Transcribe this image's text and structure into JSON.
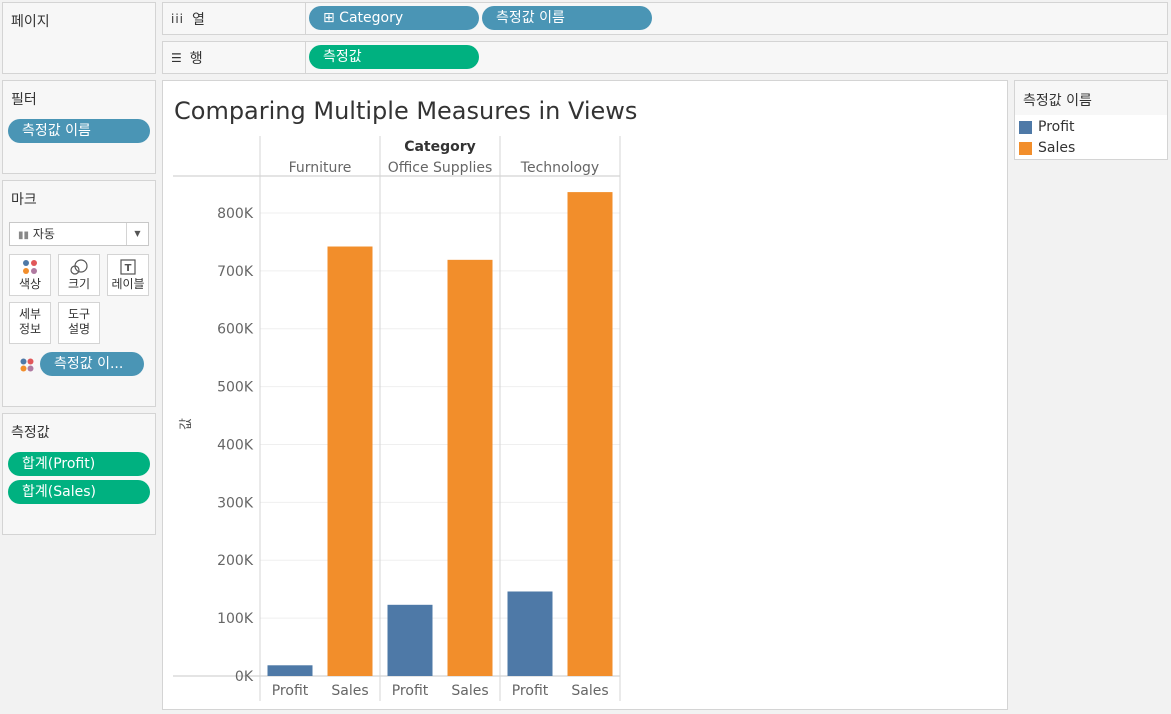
{
  "pages_panel": {
    "title": "페이지"
  },
  "columns_shelf": {
    "label": "열",
    "pills": [
      "⊞ Category",
      "측정값 이름"
    ]
  },
  "rows_shelf": {
    "label": "행",
    "pills": [
      "측정값"
    ]
  },
  "filters_panel": {
    "title": "필터",
    "pills": [
      "측정값 이름"
    ]
  },
  "marks_panel": {
    "title": "마크",
    "mark_type": "자동",
    "buttons": {
      "color": "색상",
      "size": "크기",
      "label": "레이블",
      "detail": "세부\n정보",
      "tooltip": "도구\n설명"
    },
    "color_pill": "측정값 이..."
  },
  "measures_panel": {
    "title": "측정값",
    "pills": [
      "합계(Profit)",
      "합계(Sales)"
    ]
  },
  "legend": {
    "title": "측정값 이름",
    "items": [
      {
        "label": "Profit",
        "color": "#4e79a7"
      },
      {
        "label": "Sales",
        "color": "#f28e2b"
      }
    ]
  },
  "chart_data": {
    "type": "bar",
    "title": "Comparing Multiple Measures in Views",
    "header": "Category",
    "ylabel": "값",
    "ylim": [
      0,
      850000
    ],
    "yticks": [
      0,
      100000,
      200000,
      300000,
      400000,
      500000,
      600000,
      700000,
      800000
    ],
    "ytick_labels": [
      "0K",
      "100K",
      "200K",
      "300K",
      "400K",
      "500K",
      "600K",
      "700K",
      "800K"
    ],
    "categories": [
      "Furniture",
      "Office Supplies",
      "Technology"
    ],
    "measures": [
      "Profit",
      "Sales"
    ],
    "colors": {
      "Profit": "#4e79a7",
      "Sales": "#f28e2b"
    },
    "series": [
      {
        "name": "Profit",
        "values": [
          18500,
          123000,
          146000
        ]
      },
      {
        "name": "Sales",
        "values": [
          742000,
          719000,
          836000
        ]
      }
    ]
  }
}
